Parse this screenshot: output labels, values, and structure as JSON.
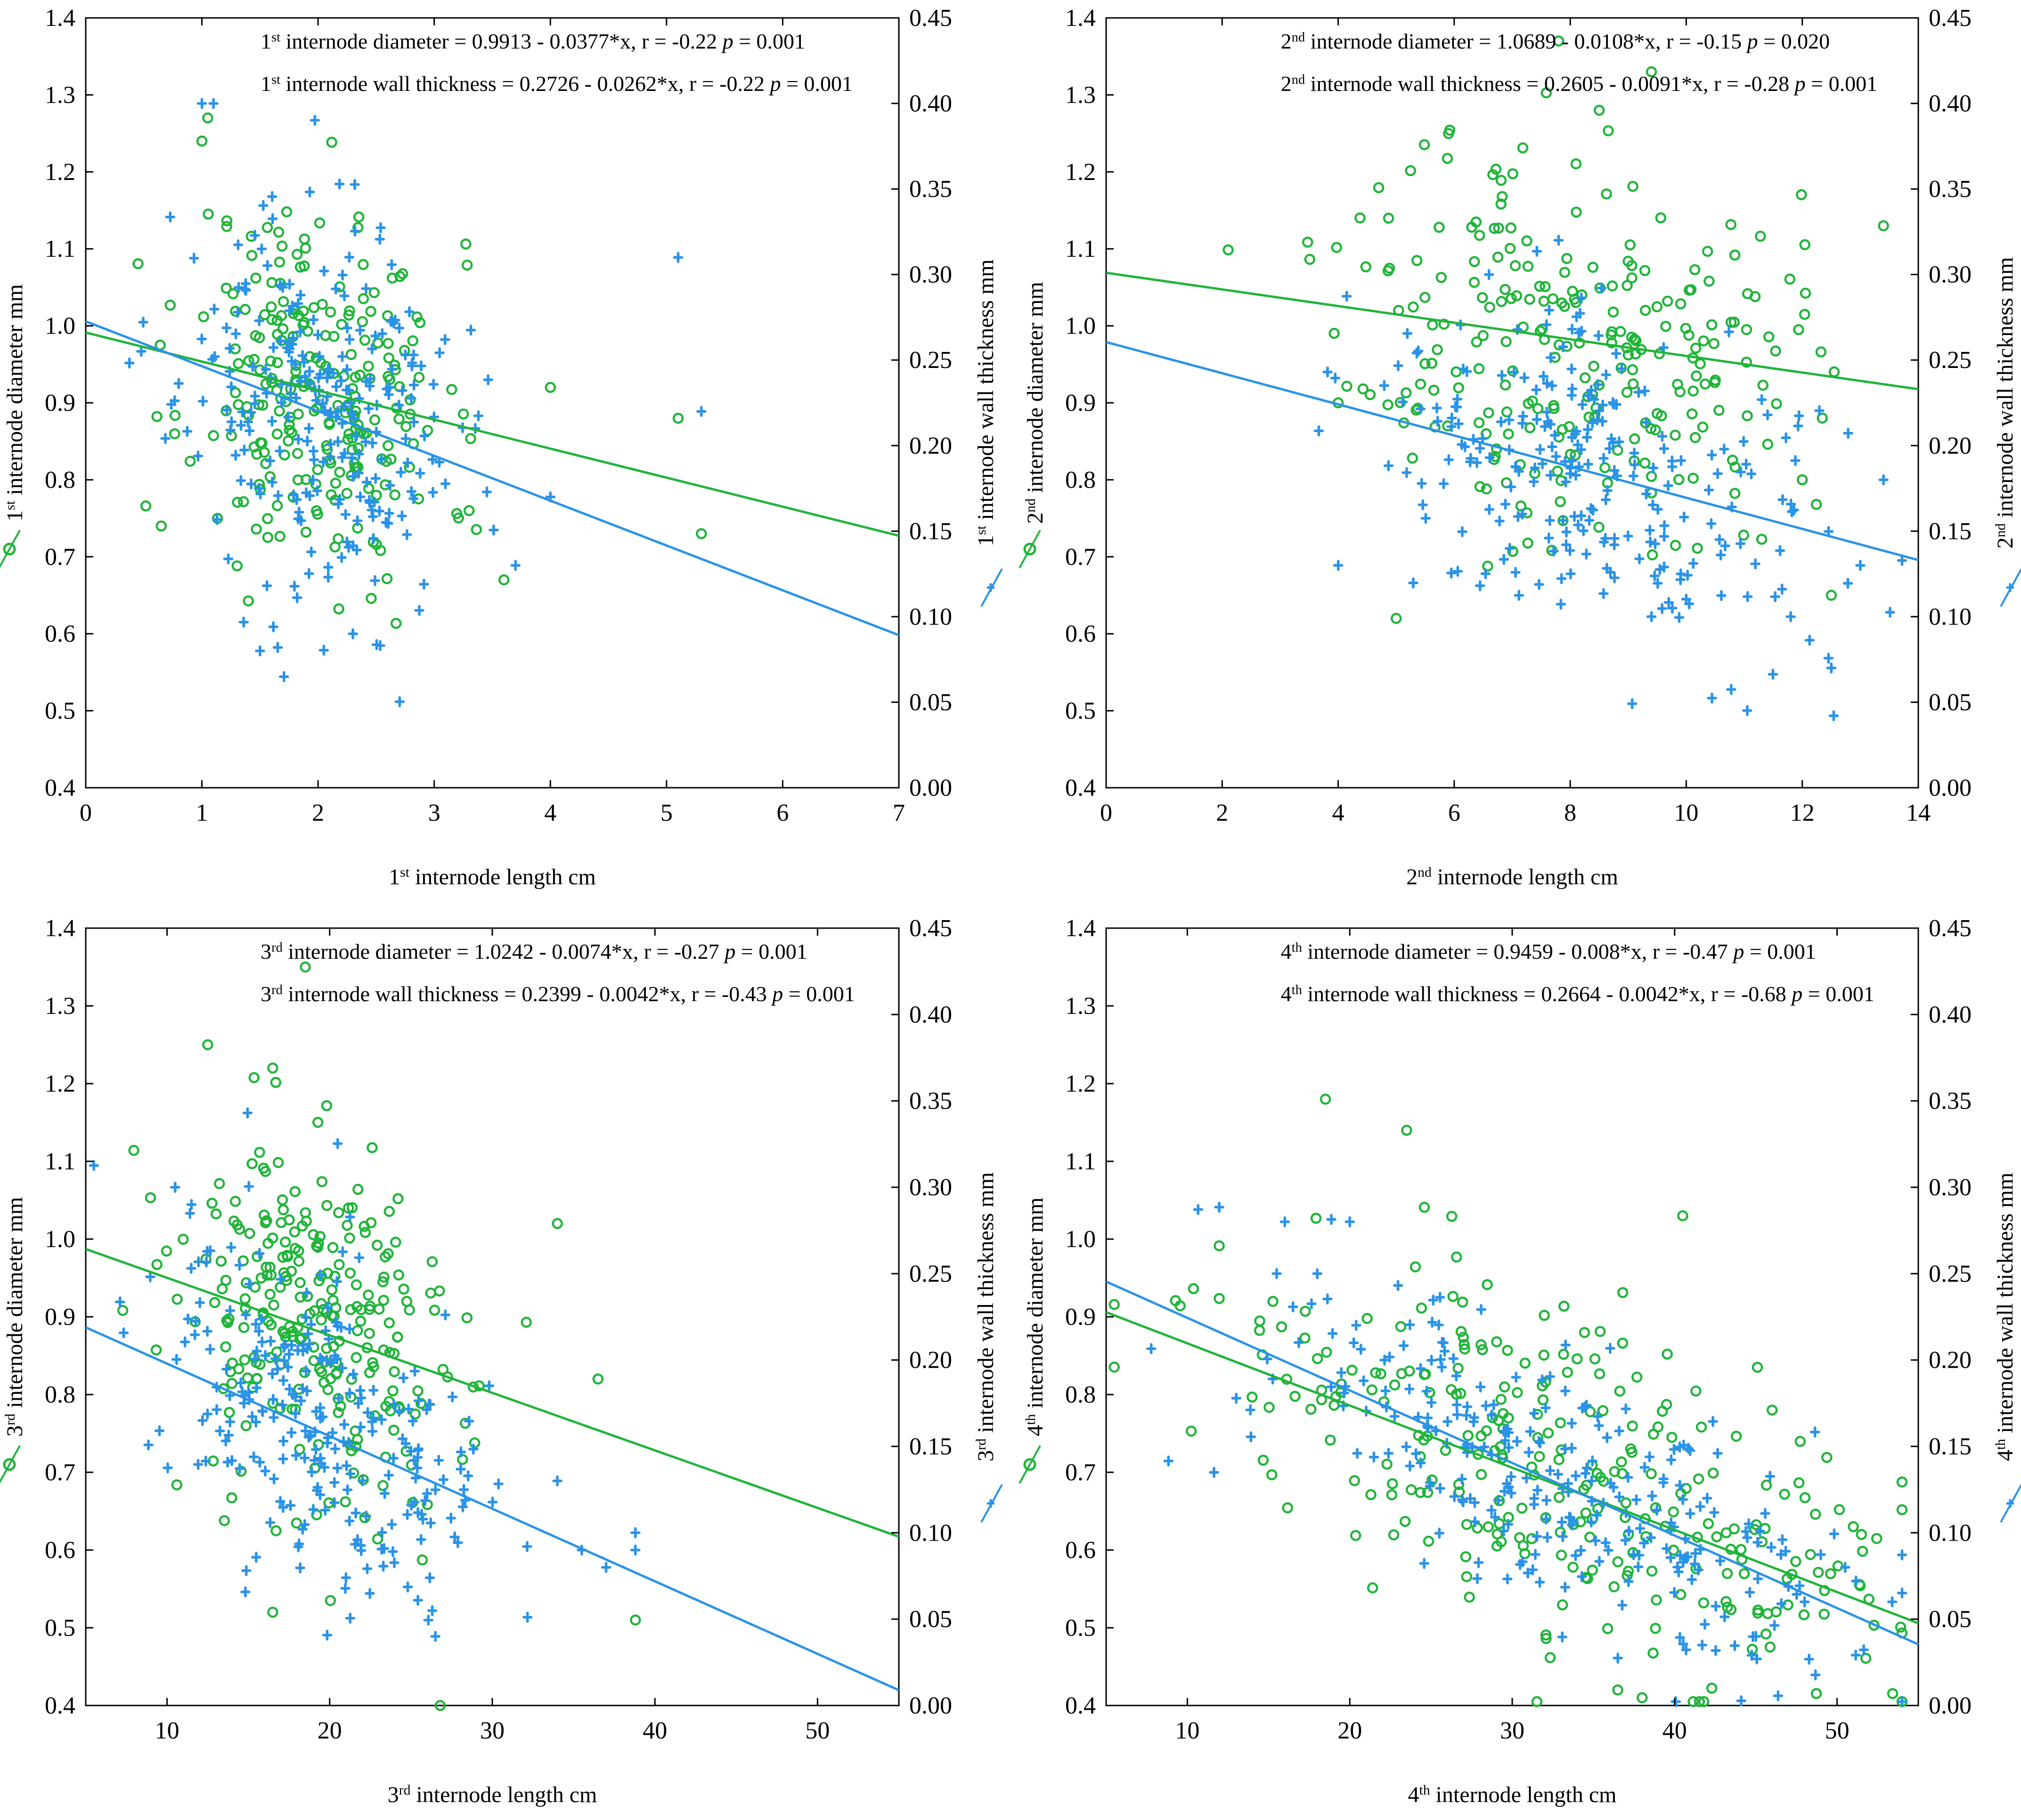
{
  "colors": {
    "diameter": "#21b43a",
    "wall": "#2a93e6",
    "axis": "#000000"
  },
  "chart_data": [
    {
      "type": "scatter",
      "title": "",
      "xlabel": "1st internode length cm",
      "xlabel_parts": [
        "1",
        "st",
        " internode length cm"
      ],
      "ylabel_left": "1st internode diameter mm",
      "ylabel_left_parts": [
        "1",
        "st",
        " internode diameter mm"
      ],
      "ylabel_right": "1st internode wall thickness mm",
      "ylabel_right_parts": [
        "1",
        "st",
        " internode wall thickness mm"
      ],
      "xlim": [
        0,
        7
      ],
      "xticks": [
        0,
        1,
        2,
        3,
        4,
        5,
        6,
        7
      ],
      "xtick_labels": [
        "0",
        "1",
        "2",
        "3",
        "4",
        "5",
        "6",
        "7"
      ],
      "ylim_left": [
        0.4,
        1.4
      ],
      "yticks_left": [
        "0.4",
        "0.5",
        "0.6",
        "0.7",
        "0.8",
        "0.9",
        "1.0",
        "1.1",
        "1.2",
        "1.3",
        "1.4"
      ],
      "ylim_right": [
        0.0,
        0.45
      ],
      "yticks_right": [
        "0.00",
        "0.05",
        "0.10",
        "0.15",
        "0.20",
        "0.25",
        "0.30",
        "0.35",
        "0.40",
        "0.45"
      ],
      "annotations": [
        {
          "ord": "1",
          "sup": "st",
          "text": " internode diameter",
          "eq": "= 0.9913 - 0.0377*x, r = -0.22",
          "p_label": "p",
          "p_value": "= 0.001"
        },
        {
          "ord": "1",
          "sup": "st",
          "text": " internode wall thickness",
          "eq": "= 0.2726 - 0.0262*x, r = -0.22",
          "p_label": "p",
          "p_value": "= 0.001"
        }
      ],
      "fits": {
        "diameter": {
          "intercept": 0.9913,
          "slope": -0.0377
        },
        "wall": {
          "intercept": 0.2726,
          "slope": -0.0262
        }
      },
      "series": [
        {
          "name": "diameter",
          "axis": "left",
          "marker": "circle",
          "mean_x": 2.0,
          "sd_x": 0.55,
          "n": 240,
          "resid_sd": 0.12,
          "seed": 11,
          "points": [
            [
              1.05,
              1.27
            ],
            [
              1.0,
              1.24
            ],
            [
              5.1,
              0.88
            ],
            [
              5.3,
              0.73
            ],
            [
              4.0,
              0.92
            ],
            [
              0.65,
              0.74
            ],
            [
              3.6,
              0.67
            ],
            [
              3.3,
              0.76
            ]
          ]
        },
        {
          "name": "wall",
          "axis": "right",
          "marker": "cross",
          "mean_x": 2.0,
          "sd_x": 0.6,
          "n": 260,
          "resid_sd": 0.055,
          "seed": 23,
          "points": [
            [
              1.0,
              0.4
            ],
            [
              1.1,
              0.4
            ],
            [
              5.1,
              0.31
            ],
            [
              5.3,
              0.22
            ],
            [
              4.0,
              0.17
            ],
            [
              3.7,
              0.13
            ],
            [
              1.5,
              0.08
            ],
            [
              2.3,
              0.09
            ]
          ]
        }
      ]
    },
    {
      "type": "scatter",
      "title": "",
      "xlabel": "2nd internode length cm",
      "xlabel_parts": [
        "2",
        "nd",
        " internode length cm"
      ],
      "ylabel_left": "2nd internode diameter mm",
      "ylabel_left_parts": [
        "2",
        "nd",
        " internode diameter mm"
      ],
      "ylabel_right": "2nd internode wall thickness mm",
      "ylabel_right_parts": [
        "2",
        "nd",
        " internode wall thickness mm"
      ],
      "xlim": [
        0,
        14
      ],
      "xticks": [
        0,
        2,
        4,
        6,
        8,
        10,
        12,
        14
      ],
      "xtick_labels": [
        "0",
        "2",
        "4",
        "6",
        "8",
        "10",
        "12",
        "14"
      ],
      "ylim_left": [
        0.4,
        1.4
      ],
      "yticks_left": [
        "0.4",
        "0.5",
        "0.6",
        "0.7",
        "0.8",
        "0.9",
        "1.0",
        "1.1",
        "1.2",
        "1.3",
        "1.4"
      ],
      "ylim_right": [
        0.0,
        0.45
      ],
      "yticks_right": [
        "0.00",
        "0.05",
        "0.10",
        "0.15",
        "0.20",
        "0.25",
        "0.30",
        "0.35",
        "0.40",
        "0.45"
      ],
      "annotations": [
        {
          "ord": "2",
          "sup": "nd",
          "text": " internode diameter",
          "eq": "= 1.0689 - 0.0108*x, r = -0.15",
          "p_label": "p",
          "p_value": "= 0.020"
        },
        {
          "ord": "2",
          "sup": "nd",
          "text": " internode wall thickness",
          "eq": "= 0.2605 - 0.0091*x, r = -0.28",
          "p_label": "p",
          "p_value": "= 0.001"
        }
      ],
      "fits": {
        "diameter": {
          "intercept": 1.0689,
          "slope": -0.0108
        },
        "wall": {
          "intercept": 0.2605,
          "slope": -0.0091
        }
      },
      "series": [
        {
          "name": "diameter",
          "axis": "left",
          "marker": "circle",
          "mean_x": 8.0,
          "sd_x": 1.9,
          "n": 250,
          "resid_sd": 0.13,
          "seed": 37,
          "points": [
            [
              9.4,
              1.33
            ],
            [
              7.8,
              1.37
            ],
            [
              8.5,
              1.28
            ],
            [
              13.4,
              1.13
            ],
            [
              12.5,
              0.65
            ],
            [
              12.0,
              0.8
            ],
            [
              4.0,
              0.9
            ],
            [
              5.0,
              0.62
            ]
          ]
        },
        {
          "name": "wall",
          "axis": "right",
          "marker": "cross",
          "mean_x": 8.5,
          "sd_x": 2.0,
          "n": 250,
          "resid_sd": 0.045,
          "seed": 41,
          "points": [
            [
              12.5,
              0.07
            ],
            [
              13.4,
              0.18
            ],
            [
              4.0,
              0.13
            ],
            [
              11.8,
              0.1
            ],
            [
              13.0,
              0.13
            ],
            [
              9.4,
              0.1
            ],
            [
              7.8,
              0.32
            ],
            [
              6.6,
              0.3
            ]
          ]
        }
      ]
    },
    {
      "type": "scatter",
      "title": "",
      "xlabel": "3rd internode length cm",
      "xlabel_parts": [
        "3",
        "rd",
        " internode length cm"
      ],
      "ylabel_left": "3rd internode diameter mm",
      "ylabel_left_parts": [
        "3",
        "rd",
        " internode diameter mm"
      ],
      "ylabel_right": "3rd internode wall thickness mm",
      "ylabel_right_parts": [
        "3",
        "rd",
        " internode wall thickness mm"
      ],
      "xlim": [
        5,
        55
      ],
      "xticks": [
        10,
        20,
        30,
        40,
        50
      ],
      "xtick_labels": [
        "10",
        "20",
        "30",
        "40",
        "50"
      ],
      "ylim_left": [
        0.4,
        1.4
      ],
      "yticks_left": [
        "0.4",
        "0.5",
        "0.6",
        "0.7",
        "0.8",
        "0.9",
        "1.0",
        "1.1",
        "1.2",
        "1.3",
        "1.4"
      ],
      "ylim_right": [
        0.0,
        0.45
      ],
      "yticks_right": [
        "0.00",
        "0.05",
        "0.10",
        "0.15",
        "0.20",
        "0.25",
        "0.30",
        "0.35",
        "0.40",
        "0.45"
      ],
      "annotations": [
        {
          "ord": "3",
          "sup": "rd",
          "text": " internode diameter",
          "eq": "= 1.0242 - 0.0074*x, r = -0.27",
          "p_label": "p",
          "p_value": "= 0.001"
        },
        {
          "ord": "3",
          "sup": "rd",
          "text": " internode wall thickness",
          "eq": "= 0.2399 - 0.0042*x, r = -0.43",
          "p_label": "p",
          "p_value": "= 0.001"
        }
      ],
      "fits": {
        "diameter": {
          "intercept": 1.0242,
          "slope": -0.0074
        },
        "wall": {
          "intercept": 0.2399,
          "slope": -0.0042
        }
      },
      "series": [
        {
          "name": "diameter",
          "axis": "left",
          "marker": "circle",
          "mean_x": 19.5,
          "sd_x": 4.6,
          "n": 260,
          "resid_sd": 0.12,
          "seed": 53,
          "points": [
            [
              12.5,
              1.25
            ],
            [
              16.5,
              1.22
            ],
            [
              34,
              1.02
            ],
            [
              36.5,
              0.82
            ],
            [
              38.8,
              0.51
            ],
            [
              26.8,
              0.4
            ],
            [
              18.5,
              1.35
            ],
            [
              16.5,
              0.52
            ]
          ]
        },
        {
          "name": "wall",
          "axis": "right",
          "marker": "cross",
          "mean_x": 19.5,
          "sd_x": 5.0,
          "n": 260,
          "resid_sd": 0.045,
          "seed": 59,
          "points": [
            [
              38.8,
              0.09
            ],
            [
              38.8,
              0.1
            ],
            [
              37.0,
              0.08
            ],
            [
              35.5,
              0.09
            ],
            [
              34.0,
              0.13
            ],
            [
              10.5,
              0.3
            ],
            [
              11.5,
              0.29
            ],
            [
              26.5,
              0.04
            ]
          ]
        }
      ]
    },
    {
      "type": "scatter",
      "title": "",
      "xlabel": "4th internode length cm",
      "xlabel_parts": [
        "4",
        "th",
        " internode length cm"
      ],
      "ylabel_left": "4th internode diameter mm",
      "ylabel_left_parts": [
        "4",
        "th",
        " internode diameter mm"
      ],
      "ylabel_right": "4th internode wall thickness mm",
      "ylabel_right_parts": [
        "4",
        "th",
        " internode wall thickness mm"
      ],
      "xlim": [
        5,
        55
      ],
      "xticks": [
        10,
        20,
        30,
        40,
        50
      ],
      "xtick_labels": [
        "10",
        "20",
        "30",
        "40",
        "50"
      ],
      "ylim_left": [
        0.4,
        1.4
      ],
      "yticks_left": [
        "0.4",
        "0.5",
        "0.6",
        "0.7",
        "0.8",
        "0.9",
        "1.0",
        "1.1",
        "1.2",
        "1.3",
        "1.4"
      ],
      "ylim_right": [
        0.0,
        0.45
      ],
      "yticks_right": [
        "0.00",
        "0.05",
        "0.10",
        "0.15",
        "0.20",
        "0.25",
        "0.30",
        "0.35",
        "0.40",
        "0.45"
      ],
      "annotations": [
        {
          "ord": "4",
          "sup": "th",
          "text": " internode diameter",
          "eq": "= 0.9459 - 0.008*x,  r = -0.47",
          "p_label": "p",
          "p_value": "= 0.001"
        },
        {
          "ord": "4",
          "sup": "th",
          "text": " internode wall thickness",
          "eq": "= 0.2664 - 0.0042*x, r = -0.68",
          "p_label": "p",
          "p_value": "= 0.001"
        }
      ],
      "fits": {
        "diameter": {
          "intercept": 0.9459,
          "slope": -0.008
        },
        "wall": {
          "intercept": 0.2664,
          "slope": -0.0042
        }
      },
      "series": [
        {
          "name": "diameter",
          "axis": "left",
          "marker": "circle",
          "mean_x": 32,
          "sd_x": 10,
          "n": 280,
          "resid_sd": 0.11,
          "seed": 67,
          "points": [
            [
              18.5,
              1.18
            ],
            [
              23.5,
              1.14
            ],
            [
              40.5,
              1.03
            ],
            [
              46,
              0.78
            ],
            [
              51,
              0.63
            ],
            [
              51.5,
              0.62
            ],
            [
              36.5,
              0.42
            ],
            [
              38,
              0.41
            ]
          ]
        },
        {
          "name": "wall",
          "axis": "right",
          "marker": "cross",
          "mean_x": 33,
          "sd_x": 10,
          "n": 280,
          "resid_sd": 0.04,
          "seed": 71,
          "points": [
            [
              16,
              0.28
            ],
            [
              20,
              0.28
            ],
            [
              18,
              0.25
            ],
            [
              15.5,
              0.25
            ],
            [
              45,
              0.04
            ],
            [
              50.5,
              0.08
            ],
            [
              48,
              0.06
            ],
            [
              42,
              0.12
            ]
          ]
        }
      ]
    }
  ]
}
